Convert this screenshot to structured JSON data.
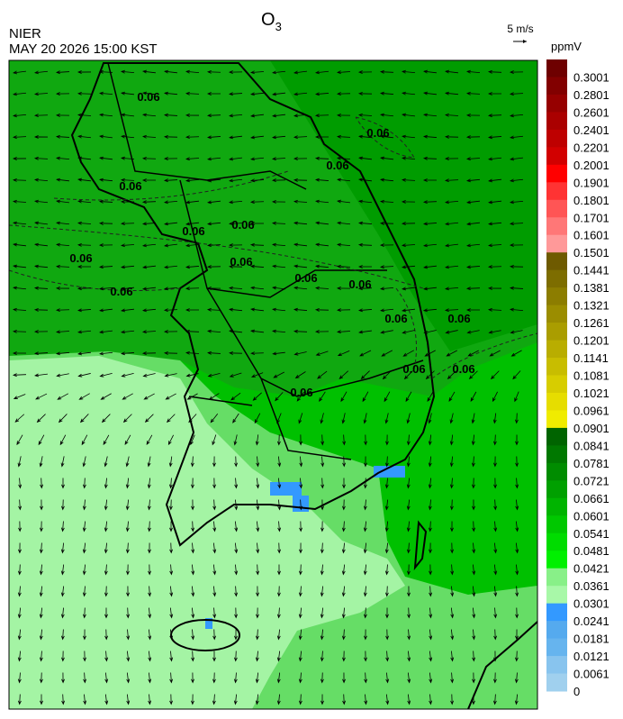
{
  "header": {
    "title": {
      "text": "O",
      "subscript": "3"
    },
    "agency": "NIER",
    "timestamp": "MAY 20 2026 15:00 KST",
    "wind_scale": "5 m/s"
  },
  "colorbar": {
    "unit": "ppmV",
    "labels": [
      "0.3001",
      "0.2801",
      "0.2601",
      "0.2401",
      "0.2201",
      "0.2001",
      "0.1901",
      "0.1801",
      "0.1701",
      "0.1601",
      "0.1501",
      "0.1441",
      "0.1381",
      "0.1321",
      "0.1261",
      "0.1201",
      "0.1141",
      "0.1081",
      "0.1021",
      "0.0961",
      "0.0901",
      "0.0841",
      "0.0781",
      "0.0721",
      "0.0661",
      "0.0601",
      "0.0541",
      "0.0481",
      "0.0421",
      "0.0361",
      "0.0301",
      "0.0241",
      "0.0181",
      "0.0121",
      "0.0061",
      "0"
    ],
    "colors": [
      "#6e0000",
      "#820000",
      "#960000",
      "#aa0000",
      "#be0000",
      "#d20000",
      "#ff0000",
      "#ff3333",
      "#ff5555",
      "#ff7777",
      "#ff9999",
      "#6e5a00",
      "#7d6d00",
      "#8c7d00",
      "#9b8d00",
      "#aa9d00",
      "#b9ad00",
      "#c8bd00",
      "#d7cd00",
      "#e6dd00",
      "#f0ec00",
      "#006400",
      "#007800",
      "#008c00",
      "#00a000",
      "#00b400",
      "#00c800",
      "#00dc00",
      "#00f000",
      "#88f088",
      "#a8f8a8",
      "#3399ff",
      "#55aaee",
      "#66b4ee",
      "#88c4ee",
      "#a0d0ee"
    ]
  },
  "map": {
    "contour_labels": [
      "0.06",
      "0.06",
      "0.06",
      "0.06",
      "0.06",
      "0.06",
      "0.06",
      "0.06",
      "0.06",
      "0.06",
      "0.06",
      "0.06",
      "0.06",
      "0.06",
      "0.06",
      "0.06"
    ]
  }
}
